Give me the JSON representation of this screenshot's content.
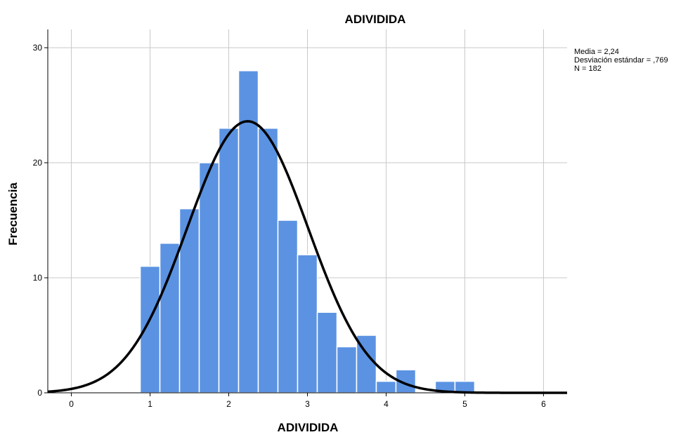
{
  "chart_data": {
    "type": "bar",
    "title": "ADIVIDIDA",
    "xlabel": "ADIVIDIDA",
    "ylabel": "Frecuencia",
    "xlim": [
      -0.3,
      6.3
    ],
    "ylim": [
      0,
      30
    ],
    "x_ticks": [
      0,
      1,
      2,
      3,
      4,
      5,
      6
    ],
    "y_ticks": [
      0,
      10,
      20,
      30
    ],
    "grid": true,
    "bar_color": "#5b93e2",
    "curve_color": "#000000",
    "bins": [
      {
        "start": 0.875,
        "end": 1.125,
        "count": 11
      },
      {
        "start": 1.125,
        "end": 1.375,
        "count": 13
      },
      {
        "start": 1.375,
        "end": 1.625,
        "count": 16
      },
      {
        "start": 1.625,
        "end": 1.875,
        "count": 20
      },
      {
        "start": 1.875,
        "end": 2.125,
        "count": 23
      },
      {
        "start": 2.125,
        "end": 2.375,
        "count": 28
      },
      {
        "start": 2.375,
        "end": 2.625,
        "count": 23
      },
      {
        "start": 2.625,
        "end": 2.875,
        "count": 15
      },
      {
        "start": 2.875,
        "end": 3.125,
        "count": 12
      },
      {
        "start": 3.125,
        "end": 3.375,
        "count": 7
      },
      {
        "start": 3.375,
        "end": 3.625,
        "count": 4
      },
      {
        "start": 3.625,
        "end": 3.875,
        "count": 5
      },
      {
        "start": 3.875,
        "end": 4.125,
        "count": 1
      },
      {
        "start": 4.125,
        "end": 4.375,
        "count": 2
      },
      {
        "start": 4.625,
        "end": 4.875,
        "count": 1
      },
      {
        "start": 4.875,
        "end": 5.125,
        "count": 1
      }
    ],
    "normal_curve": {
      "mean": 2.24,
      "sd": 0.769,
      "n": 182,
      "bin_width": 0.25
    },
    "stats_text": {
      "mean": "Media = 2,24",
      "sd": "Desviación estándar = ,769",
      "n": "N = 182"
    }
  }
}
